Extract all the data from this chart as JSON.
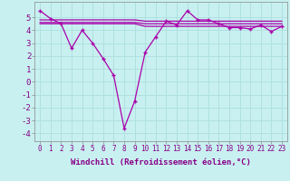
{
  "xlabel": "Windchill (Refroidissement éolien,°C)",
  "ylabel": "",
  "background_color": "#c8f0f0",
  "grid_color": "#b0e0e0",
  "line_color": "#aa00aa",
  "x": [
    0,
    1,
    2,
    3,
    4,
    5,
    6,
    7,
    8,
    9,
    10,
    11,
    12,
    13,
    14,
    15,
    16,
    17,
    18,
    19,
    20,
    21,
    22,
    23
  ],
  "series1": [
    5.5,
    4.9,
    4.5,
    2.6,
    4.0,
    3.0,
    1.8,
    0.5,
    -3.6,
    -1.5,
    2.3,
    3.5,
    4.7,
    4.4,
    5.5,
    4.8,
    4.8,
    4.5,
    4.2,
    4.2,
    4.1,
    4.4,
    3.9,
    4.3
  ],
  "series2": [
    4.5,
    4.5,
    4.5,
    4.5,
    4.5,
    4.5,
    4.5,
    4.5,
    4.5,
    4.5,
    4.3,
    4.3,
    4.3,
    4.3,
    4.3,
    4.3,
    4.3,
    4.3,
    4.3,
    4.3,
    4.3,
    4.3,
    4.3,
    4.3
  ],
  "series3": [
    4.6,
    4.6,
    4.6,
    4.6,
    4.6,
    4.6,
    4.6,
    4.6,
    4.6,
    4.6,
    4.5,
    4.5,
    4.5,
    4.5,
    4.5,
    4.5,
    4.5,
    4.5,
    4.5,
    4.5,
    4.5,
    4.5,
    4.5,
    4.5
  ],
  "series4": [
    4.8,
    4.8,
    4.8,
    4.8,
    4.8,
    4.8,
    4.8,
    4.8,
    4.8,
    4.8,
    4.7,
    4.7,
    4.7,
    4.7,
    4.7,
    4.7,
    4.7,
    4.7,
    4.7,
    4.7,
    4.7,
    4.7,
    4.7,
    4.7
  ],
  "ylim": [
    -4.6,
    6.2
  ],
  "yticks": [
    -4,
    -3,
    -2,
    -1,
    0,
    1,
    2,
    3,
    4,
    5
  ],
  "font_size": 7,
  "tick_label_color": "#880088"
}
